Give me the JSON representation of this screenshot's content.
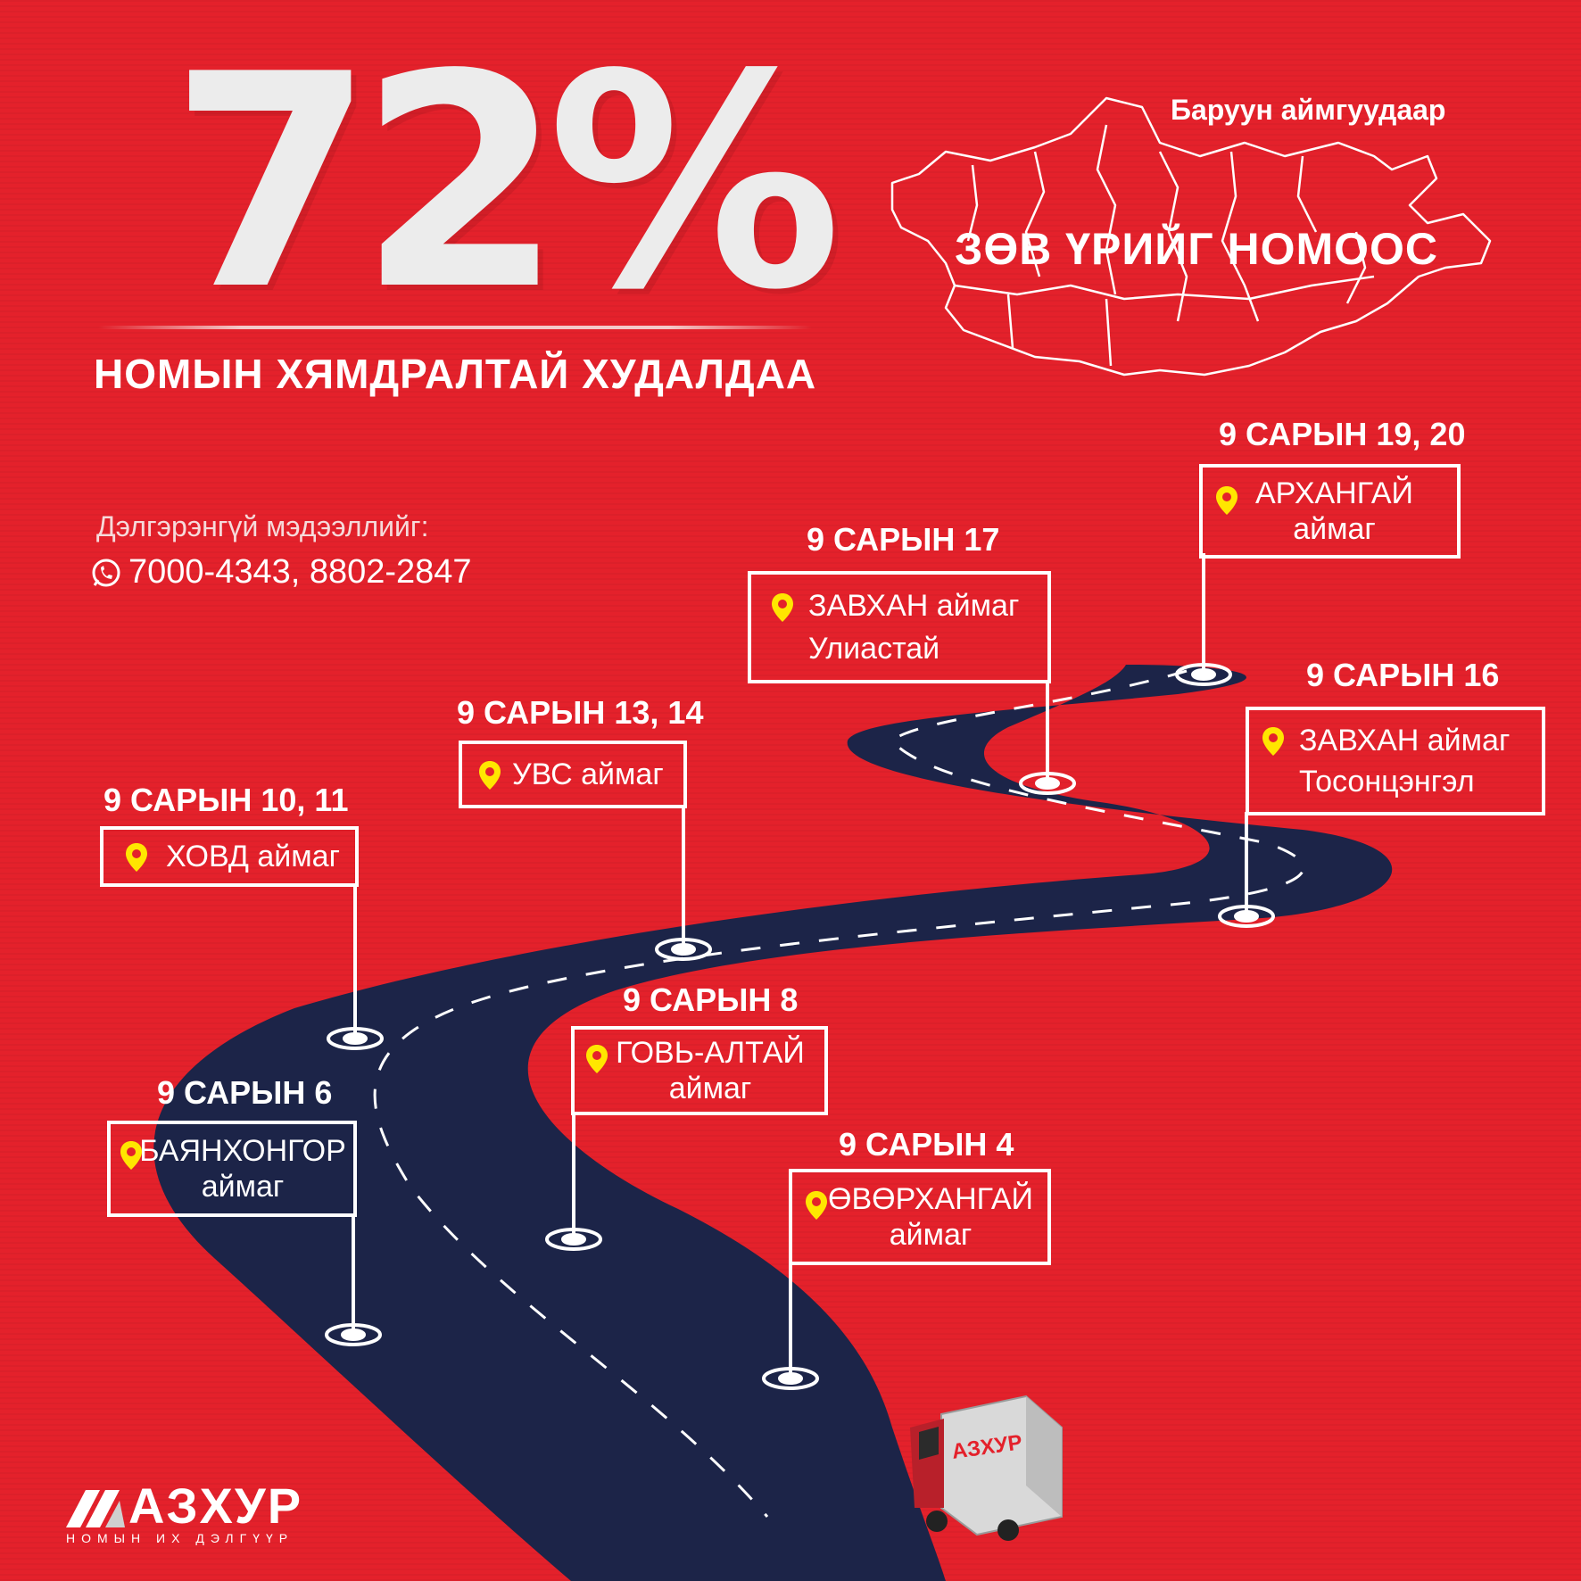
{
  "headline": {
    "percent": "72%",
    "title": "НОМЫН ХЯМДРАЛТАЙ ХУДАЛДАА"
  },
  "map": {
    "subtitle": "Баруун аймгуудаар",
    "title": "ЗӨВ ҮРИЙГ НОМООС"
  },
  "contact": {
    "label": "Дэлгэрэнгүй мэдээллийг:",
    "phones": "7000-4343, 8802-2847",
    "icon": "phone-icon"
  },
  "stops": [
    {
      "date": "9 САРЫН 19, 20",
      "line1": "АРХАНГАЙ",
      "line2": "аймаг"
    },
    {
      "date": "9 САРЫН 17",
      "line1": "ЗАВХАН аймаг",
      "line2": "Улиастай"
    },
    {
      "date": "9 САРЫН 16",
      "line1": "ЗАВХАН аймаг",
      "line2": "Тосонцэнгэл"
    },
    {
      "date": "9 САРЫН 13, 14",
      "line1": "УВС аймаг",
      "line2": ""
    },
    {
      "date": "9 САРЫН 10, 11",
      "line1": "ХОВД аймаг",
      "line2": ""
    },
    {
      "date": "9 САРЫН 8",
      "line1": "ГОВЬ-АЛТАЙ",
      "line2": "аймаг"
    },
    {
      "date": "9 САРЫН 6",
      "line1": "БАЯНХОНГОР",
      "line2": "аймаг"
    },
    {
      "date": "9 САРЫН 4",
      "line1": "ӨВӨРХАНГАЙ",
      "line2": "аймаг"
    }
  ],
  "truck": {
    "brand": "АЗХУР"
  },
  "brand": {
    "name": "АЗХУР",
    "tagline": "НОМЫН ИХ ДЭЛГҮҮР"
  },
  "colors": {
    "background": "#e4212b",
    "road": "#1c2448",
    "pin": "#ffe600"
  }
}
